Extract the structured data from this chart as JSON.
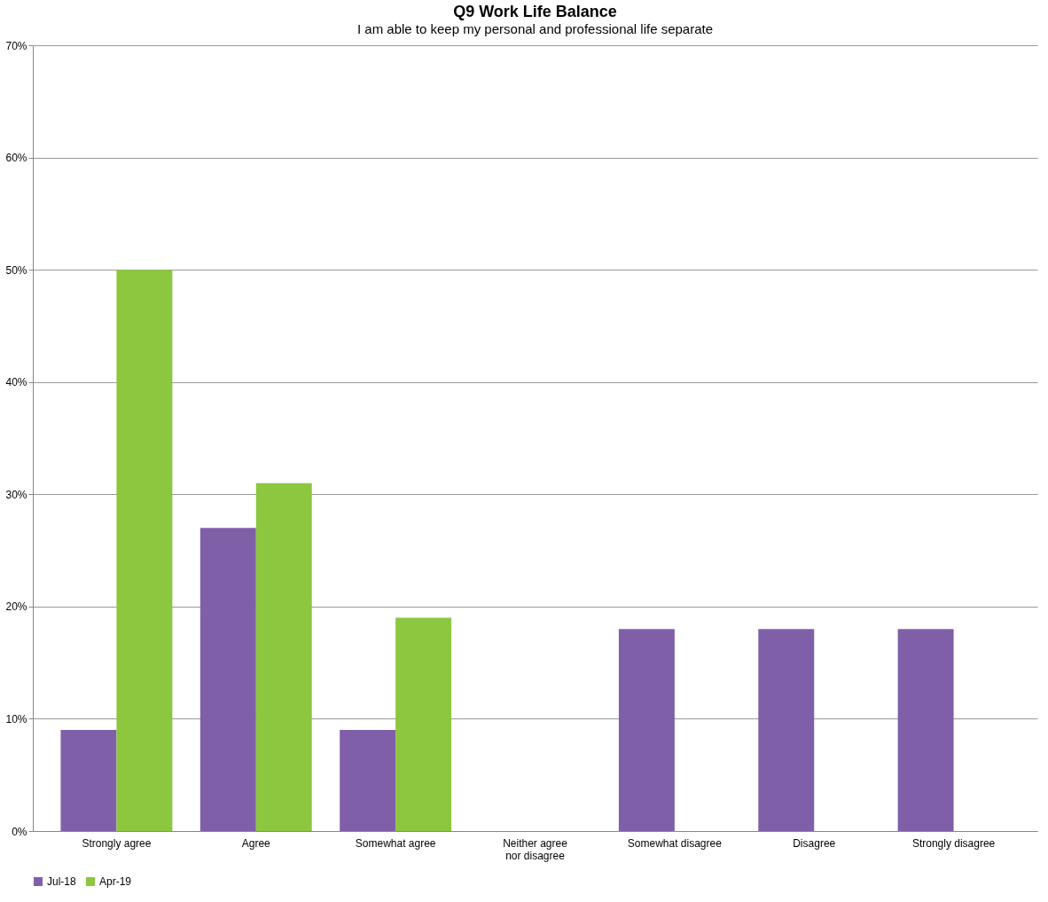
{
  "chart_data": {
    "type": "bar",
    "title": "Q9 Work Life Balance",
    "subtitle": "I am able to keep my personal and professional life separate",
    "categories": [
      "Strongly agree",
      "Agree",
      "Somewhat agree",
      "Neither agree nor disagree",
      "Somewhat disagree",
      "Disagree",
      "Strongly disagree"
    ],
    "series": [
      {
        "name": "Jul-18",
        "color": "#7f5fa8",
        "values": [
          9,
          27,
          9,
          null,
          18,
          18,
          18
        ]
      },
      {
        "name": "Apr-19",
        "color": "#8dc63f",
        "values": [
          50,
          31,
          19,
          null,
          null,
          null,
          null
        ]
      }
    ],
    "ylim": [
      0,
      70
    ],
    "yticks": [
      {
        "value": 0,
        "label": "0%"
      },
      {
        "value": 10,
        "label": "10%"
      },
      {
        "value": 20,
        "label": "20%"
      },
      {
        "value": 30,
        "label": "30%"
      },
      {
        "value": 40,
        "label": "40%"
      },
      {
        "value": 50,
        "label": "50%"
      },
      {
        "value": 60,
        "label": "60%"
      },
      {
        "value": 70,
        "label": "70%"
      }
    ],
    "grid": "y",
    "legend": "bottom"
  }
}
